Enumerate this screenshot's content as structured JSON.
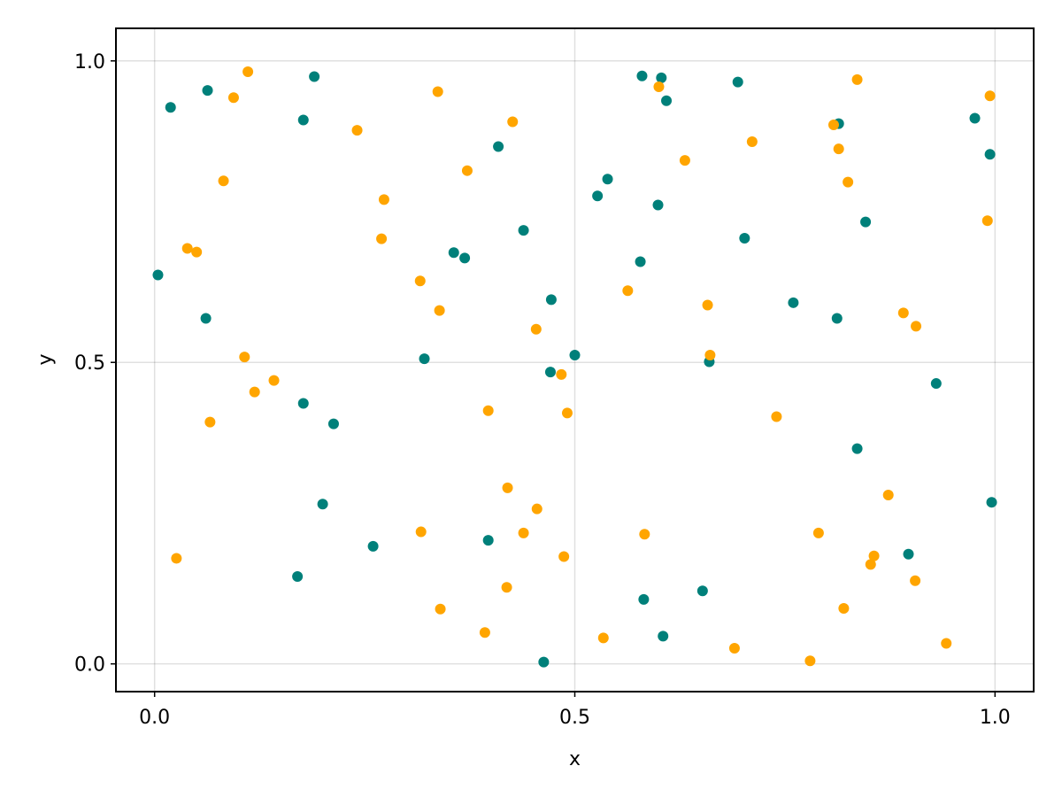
{
  "chart_data": {
    "type": "scatter",
    "title": "",
    "xlabel": "x",
    "ylabel": "y",
    "xlim": [
      -0.046,
      1.046
    ],
    "ylim": [
      -0.046,
      1.054
    ],
    "x_ticks": [
      0.0,
      0.5,
      1.0
    ],
    "y_ticks": [
      0.0,
      0.5,
      1.0
    ],
    "x_tick_labels": [
      "0.0",
      "0.5",
      "1.0"
    ],
    "y_tick_labels": [
      "0.0",
      "0.5",
      "1.0"
    ],
    "grid": true,
    "series": [
      {
        "color": "#00807A",
        "points": [
          [
            0.004,
            0.645
          ],
          [
            0.019,
            0.923
          ],
          [
            0.063,
            0.951
          ],
          [
            0.061,
            0.573
          ],
          [
            0.177,
            0.902
          ],
          [
            0.19,
            0.974
          ],
          [
            0.177,
            0.432
          ],
          [
            0.213,
            0.398
          ],
          [
            0.2,
            0.265
          ],
          [
            0.17,
            0.145
          ],
          [
            0.26,
            0.195
          ],
          [
            0.321,
            0.506
          ],
          [
            0.356,
            0.682
          ],
          [
            0.369,
            0.673
          ],
          [
            0.397,
            0.205
          ],
          [
            0.409,
            0.858
          ],
          [
            0.439,
            0.719
          ],
          [
            0.472,
            0.604
          ],
          [
            0.471,
            0.484
          ],
          [
            0.463,
            0.003
          ],
          [
            0.5,
            0.512
          ],
          [
            0.527,
            0.776
          ],
          [
            0.539,
            0.804
          ],
          [
            0.58,
            0.975
          ],
          [
            0.603,
            0.972
          ],
          [
            0.609,
            0.934
          ],
          [
            0.599,
            0.761
          ],
          [
            0.578,
            0.667
          ],
          [
            0.582,
            0.107
          ],
          [
            0.605,
            0.046
          ],
          [
            0.652,
            0.121
          ],
          [
            0.66,
            0.501
          ],
          [
            0.694,
            0.965
          ],
          [
            0.702,
            0.706
          ],
          [
            0.76,
            0.599
          ],
          [
            0.812,
            0.573
          ],
          [
            0.814,
            0.896
          ],
          [
            0.846,
            0.733
          ],
          [
            0.836,
            0.357
          ],
          [
            0.897,
            0.182
          ],
          [
            0.93,
            0.465
          ],
          [
            0.976,
            0.905
          ],
          [
            0.994,
            0.845
          ],
          [
            0.996,
            0.268
          ]
        ]
      },
      {
        "color": "#FFA500",
        "points": [
          [
            0.026,
            0.175
          ],
          [
            0.039,
            0.689
          ],
          [
            0.05,
            0.683
          ],
          [
            0.066,
            0.401
          ],
          [
            0.082,
            0.801
          ],
          [
            0.094,
            0.939
          ],
          [
            0.111,
            0.982
          ],
          [
            0.107,
            0.509
          ],
          [
            0.119,
            0.451
          ],
          [
            0.142,
            0.47
          ],
          [
            0.241,
            0.885
          ],
          [
            0.27,
            0.705
          ],
          [
            0.273,
            0.77
          ],
          [
            0.316,
            0.635
          ],
          [
            0.317,
            0.219
          ],
          [
            0.337,
            0.949
          ],
          [
            0.339,
            0.586
          ],
          [
            0.34,
            0.091
          ],
          [
            0.372,
            0.818
          ],
          [
            0.393,
            0.052
          ],
          [
            0.397,
            0.42
          ],
          [
            0.419,
            0.127
          ],
          [
            0.42,
            0.292
          ],
          [
            0.426,
            0.899
          ],
          [
            0.439,
            0.217
          ],
          [
            0.454,
            0.555
          ],
          [
            0.455,
            0.257
          ],
          [
            0.484,
            0.48
          ],
          [
            0.487,
            0.178
          ],
          [
            0.491,
            0.416
          ],
          [
            0.534,
            0.043
          ],
          [
            0.563,
            0.619
          ],
          [
            0.583,
            0.215
          ],
          [
            0.6,
            0.957
          ],
          [
            0.631,
            0.835
          ],
          [
            0.658,
            0.595
          ],
          [
            0.661,
            0.512
          ],
          [
            0.69,
            0.026
          ],
          [
            0.711,
            0.866
          ],
          [
            0.74,
            0.41
          ],
          [
            0.78,
            0.005
          ],
          [
            0.79,
            0.217
          ],
          [
            0.808,
            0.894
          ],
          [
            0.814,
            0.854
          ],
          [
            0.82,
            0.092
          ],
          [
            0.825,
            0.799
          ],
          [
            0.836,
            0.969
          ],
          [
            0.852,
            0.165
          ],
          [
            0.856,
            0.179
          ],
          [
            0.873,
            0.28
          ],
          [
            0.891,
            0.582
          ],
          [
            0.905,
            0.138
          ],
          [
            0.906,
            0.56
          ],
          [
            0.942,
            0.034
          ],
          [
            0.991,
            0.735
          ],
          [
            0.994,
            0.942
          ]
        ]
      }
    ]
  }
}
